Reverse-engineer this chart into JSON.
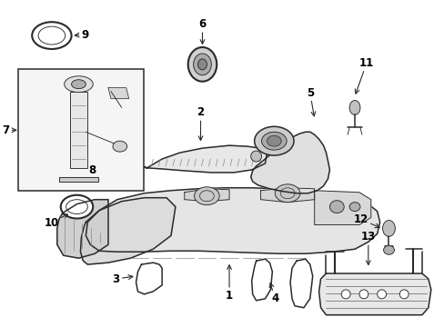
{
  "bg_color": "#ffffff",
  "line_color": "#2a2a2a",
  "label_color": "#000000",
  "figsize": [
    4.89,
    3.6
  ],
  "dpi": 100,
  "lw_main": 1.1,
  "lw_thin": 0.65,
  "lw_thick": 1.5,
  "label_fontsize": 8.5,
  "label_fontweight": "bold"
}
